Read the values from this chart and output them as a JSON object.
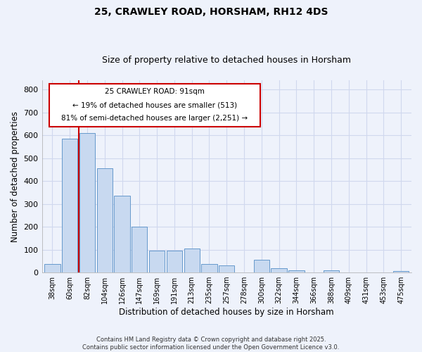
{
  "title1": "25, CRAWLEY ROAD, HORSHAM, RH12 4DS",
  "title2": "Size of property relative to detached houses in Horsham",
  "xlabel": "Distribution of detached houses by size in Horsham",
  "ylabel": "Number of detached properties",
  "categories": [
    "38sqm",
    "60sqm",
    "82sqm",
    "104sqm",
    "126sqm",
    "147sqm",
    "169sqm",
    "191sqm",
    "213sqm",
    "235sqm",
    "257sqm",
    "278sqm",
    "300sqm",
    "322sqm",
    "344sqm",
    "366sqm",
    "388sqm",
    "409sqm",
    "431sqm",
    "453sqm",
    "475sqm"
  ],
  "values": [
    38,
    585,
    610,
    455,
    335,
    200,
    95,
    95,
    105,
    38,
    32,
    0,
    55,
    20,
    10,
    0,
    10,
    0,
    0,
    0,
    5
  ],
  "bar_color": "#c8d9f0",
  "bar_edge_color": "#6699cc",
  "vline_x": 1.5,
  "vline_color": "#cc0000",
  "annotation_text_line1": "25 CRAWLEY ROAD: 91sqm",
  "annotation_text_line2": "← 19% of detached houses are smaller (513)",
  "annotation_text_line3": "81% of semi-detached houses are larger (2,251) →",
  "annotation_box_color": "#cc0000",
  "ylim": [
    0,
    840
  ],
  "yticks": [
    0,
    100,
    200,
    300,
    400,
    500,
    600,
    700,
    800
  ],
  "footer1": "Contains HM Land Registry data © Crown copyright and database right 2025.",
  "footer2": "Contains public sector information licensed under the Open Government Licence v3.0.",
  "bg_color": "#eef2fb",
  "grid_color": "#d0d8ee",
  "title_fontsize": 10,
  "subtitle_fontsize": 9,
  "tick_fontsize": 7,
  "label_fontsize": 8.5,
  "footer_fontsize": 6
}
